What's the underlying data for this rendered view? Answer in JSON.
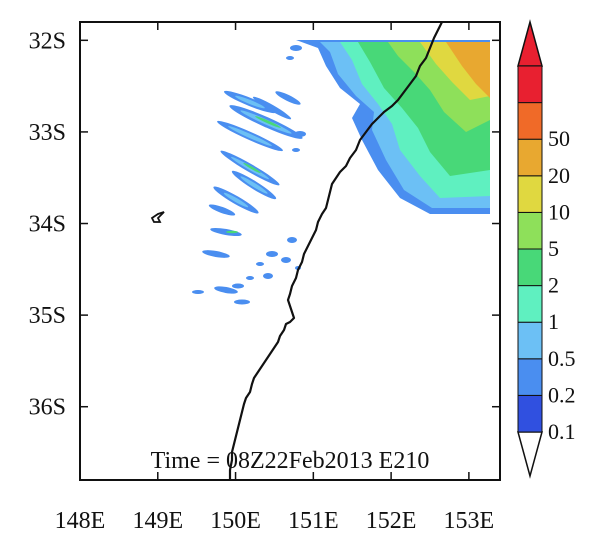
{
  "map": {
    "lon_range": [
      148,
      153.4
    ],
    "lat_range": [
      -36.8,
      -31.8
    ],
    "lon_ticks": [
      {
        "value": 148,
        "label": "148E"
      },
      {
        "value": 149,
        "label": "149E"
      },
      {
        "value": 150,
        "label": "150E"
      },
      {
        "value": 151,
        "label": "151E"
      },
      {
        "value": 152,
        "label": "152E"
      },
      {
        "value": 153,
        "label": "153E"
      }
    ],
    "lat_ticks": [
      {
        "value": -32,
        "label": "32S"
      },
      {
        "value": -33,
        "label": "33S"
      },
      {
        "value": -34,
        "label": "34S"
      },
      {
        "value": -35,
        "label": "35S"
      },
      {
        "value": -36,
        "label": "36S"
      }
    ],
    "time_label": "Time = 08Z22Feb2013 E210"
  },
  "colorbar": {
    "levels": [
      "0.1",
      "0.2",
      "0.5",
      "1",
      "2",
      "5",
      "10",
      "20",
      "50"
    ],
    "colors": [
      "#3050e0",
      "#4a8ef0",
      "#6cc0f5",
      "#5ff0c0",
      "#48d878",
      "#8ee05a",
      "#e0d840",
      "#e8a830",
      "#f06a28",
      "#e82030"
    ],
    "low_end_color": "#ffffff",
    "high_end_color": "#e82030"
  }
}
